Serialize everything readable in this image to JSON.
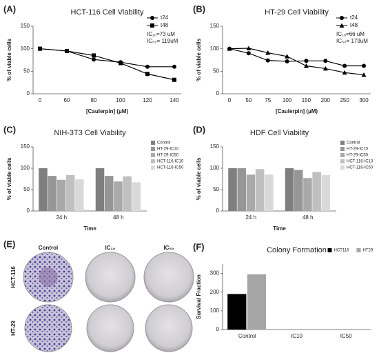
{
  "chart_data": [
    {
      "type": "line",
      "label": "(A)",
      "title": "HCT-116 Cell Viability",
      "x_label": "[Caulerpin] (µM)",
      "y_label": "% of viable cells",
      "categories": [
        "0",
        "60",
        "80",
        "100",
        "120",
        "140"
      ],
      "series": [
        {
          "name": "t24",
          "color": "#000000",
          "marker": "circle",
          "values": [
            100,
            95,
            76,
            70,
            60,
            60
          ]
        },
        {
          "name": "t48",
          "color": "#000000",
          "marker": "square",
          "values": [
            100,
            95,
            85,
            68,
            44,
            31
          ]
        }
      ],
      "annotations": [
        "IC₁₀=73 uM",
        "IC₅₀= 119uM"
      ],
      "ylim": [
        0,
        150
      ],
      "yticks": [
        0,
        50,
        100,
        150
      ],
      "legend": "top-right"
    },
    {
      "type": "line",
      "label": "(B)",
      "title": "HT-29 Cell Viability",
      "x_label": "[Caulerpin] (µM)",
      "y_label": "% of viable cells",
      "categories": [
        "0",
        "50",
        "75",
        "100",
        "150",
        "200",
        "250",
        "300"
      ],
      "series": [
        {
          "name": "t24",
          "color": "#000000",
          "marker": "circle",
          "values": [
            100,
            90,
            74,
            72,
            73,
            73,
            62,
            62
          ]
        },
        {
          "name": "t48",
          "color": "#000000",
          "marker": "triangle",
          "values": [
            100,
            101,
            91,
            83,
            62,
            56,
            47,
            42
          ]
        }
      ],
      "annotations": [
        "IC₁₀=66 uM",
        "IC₅₀= 179uM"
      ],
      "ylim": [
        0,
        150
      ],
      "yticks": [
        0,
        50,
        100,
        150
      ],
      "legend": "top-right"
    },
    {
      "type": "bar",
      "label": "(C)",
      "title": "NIH-3T3 Cell Viability",
      "x_label": "Time",
      "y_label": "% of viable cells",
      "categories": [
        "24 h",
        "48 h"
      ],
      "series": [
        {
          "name": "Control",
          "color": "#7f7f7f",
          "values": [
            100,
            100
          ]
        },
        {
          "name": "HT-29-IC10",
          "color": "#969696",
          "values": [
            82,
            82
          ]
        },
        {
          "name": "HT-29-IC50",
          "color": "#a9a9a9",
          "values": [
            73,
            69
          ]
        },
        {
          "name": "HCT-116-IC10",
          "color": "#c0c0c0",
          "values": [
            84,
            81
          ]
        },
        {
          "name": "HCT-116-IC50",
          "color": "#d9d9d9",
          "values": [
            74,
            67
          ]
        }
      ],
      "ylim": [
        0,
        150
      ],
      "yticks": [
        0,
        50,
        100,
        150
      ],
      "legend": "right"
    },
    {
      "type": "bar",
      "label": "(D)",
      "title": "HDF Cell Viability",
      "x_label": "Time",
      "y_label": "% of viable cells",
      "categories": [
        "24 h",
        "48 h"
      ],
      "series": [
        {
          "name": "Control",
          "color": "#7f7f7f",
          "values": [
            100,
            100
          ]
        },
        {
          "name": "HT-29-IC10",
          "color": "#969696",
          "values": [
            100,
            96
          ]
        },
        {
          "name": "HT-29-IC50",
          "color": "#a9a9a9",
          "values": [
            85,
            77
          ]
        },
        {
          "name": "HCT-116-IC10",
          "color": "#c0c0c0",
          "values": [
            98,
            91
          ]
        },
        {
          "name": "HCT-116-IC50",
          "color": "#d9d9d9",
          "values": [
            85,
            84
          ]
        }
      ],
      "ylim": [
        0,
        150
      ],
      "yticks": [
        0,
        50,
        100,
        150
      ],
      "legend": "right"
    },
    {
      "type": "bar",
      "label": "(F)",
      "title": "Colony Formation",
      "y_label": "Survival Fraction",
      "categories": [
        "Control",
        "IC10",
        "IC50"
      ],
      "series": [
        {
          "name": "HCT116",
          "color": "#000000",
          "values": [
            190,
            0,
            0
          ]
        },
        {
          "name": "HT29",
          "color": "#a6a6a6",
          "values": [
            295,
            0,
            0
          ]
        }
      ],
      "ylim": [
        0,
        350
      ],
      "yticks": [
        0,
        100,
        200,
        300
      ],
      "legend": "top"
    }
  ],
  "image_panel": {
    "label": "(E)",
    "columns": [
      "Control",
      "IC₁₀",
      "IC₅₀"
    ],
    "rows": [
      "HCT-116",
      "HT-29"
    ]
  }
}
